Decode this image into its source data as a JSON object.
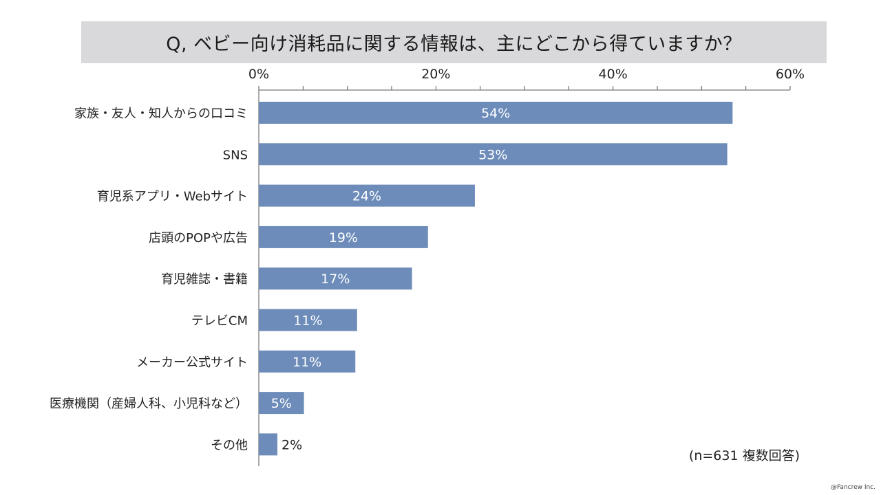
{
  "title": "Q, ベビー向け消耗品に関する情報は、主にどこから得ていますか？",
  "note": "(n=631 複数回答)",
  "credit": "@Fancrew Inc.",
  "colors": {
    "bar": "#6d8cba",
    "bar_label": "#ffffff",
    "outside_label": "#222222",
    "axis": "#555555",
    "title_band": "#d9d9db"
  },
  "chart_data": {
    "type": "bar",
    "orientation": "horizontal",
    "title": "Q, ベビー向け消耗品に関する情報は、主にどこから得ていますか？",
    "categories": [
      "家族・友人・知人からの口コミ",
      "SNS",
      "育児系アプリ・Webサイト",
      "店頭のPOPや広告",
      "育児雑誌・書籍",
      "テレビCM",
      "メーカー公式サイト",
      "医療機関（産婦人科、小児科など）",
      "その他"
    ],
    "values": [
      53.5,
      52.9,
      24.4,
      19.1,
      17.3,
      11.1,
      10.9,
      5.1,
      2.1
    ],
    "data_labels": [
      "54%",
      "53%",
      "24%",
      "19%",
      "17%",
      "11%",
      "11%",
      "5%",
      "2%"
    ],
    "tick_labels": [
      "0%",
      "20%",
      "40%",
      "60%"
    ],
    "xlim": [
      0,
      60
    ],
    "major_ticks": [
      0,
      20,
      40,
      60
    ],
    "minor_ticks": [
      5,
      10,
      15,
      25,
      30,
      35,
      45,
      50,
      55
    ],
    "axis_position": "top",
    "grid": false,
    "legend": "none"
  }
}
